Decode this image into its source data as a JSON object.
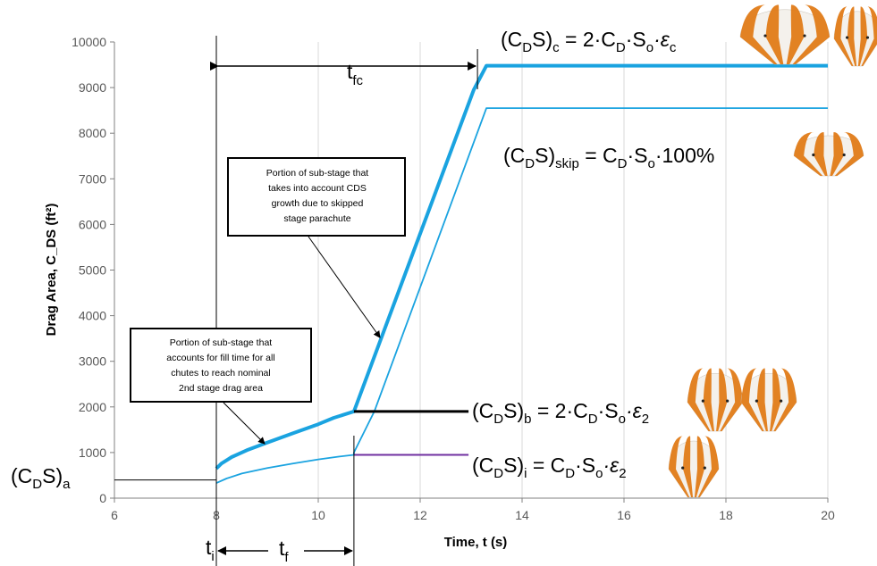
{
  "chart_data": {
    "type": "line",
    "xlabel": "Time, t (s)",
    "ylabel": "Drag Area, C_DS (ft²)",
    "xlim": [
      6,
      20
    ],
    "ylim": [
      0,
      10000
    ],
    "x_ticks": [
      "6",
      "8",
      "10",
      "12",
      "14",
      "16",
      "18",
      "20"
    ],
    "y_ticks": [
      "0",
      "1000",
      "2000",
      "3000",
      "4000",
      "5000",
      "6000",
      "7000",
      "8000",
      "9000",
      "10000"
    ],
    "grid": "vertical",
    "series": [
      {
        "color": "#1aa3e0",
        "width": 4,
        "points": [
          [
            8,
            650
          ],
          [
            8.1,
            760
          ],
          [
            8.3,
            900
          ],
          [
            8.6,
            1050
          ],
          [
            9,
            1220
          ],
          [
            9.5,
            1420
          ],
          [
            10,
            1620
          ],
          [
            10.3,
            1760
          ],
          [
            10.7,
            1900
          ],
          [
            13.05,
            8950
          ],
          [
            13.3,
            9480
          ],
          [
            20,
            9480
          ]
        ]
      },
      {
        "color": "#1aa3e0",
        "width": 1.8,
        "points": [
          [
            8,
            330
          ],
          [
            8.2,
            430
          ],
          [
            8.5,
            540
          ],
          [
            9,
            660
          ],
          [
            9.5,
            760
          ],
          [
            10,
            850
          ],
          [
            10.4,
            910
          ],
          [
            10.7,
            950
          ],
          [
            10.7,
            1000
          ],
          [
            11.1,
            1900
          ],
          [
            13.3,
            8550
          ],
          [
            20,
            8550
          ]
        ]
      },
      {
        "color": "#000000",
        "width": 3,
        "points": [
          [
            10.7,
            1900
          ],
          [
            12.95,
            1900
          ]
        ]
      },
      {
        "color": "#7030a0",
        "width": 2,
        "points": [
          [
            10.7,
            950
          ],
          [
            12.95,
            950
          ]
        ]
      },
      {
        "color": "#000000",
        "width": 1,
        "points": [
          [
            6,
            400
          ],
          [
            8,
            400
          ]
        ]
      }
    ],
    "markers": {
      "t_i": 8,
      "t_f_end": 10.7,
      "t_fc_end": 13.3
    },
    "annotations": {
      "t_fc": {
        "main": "t",
        "sub": "fc"
      },
      "t_i": {
        "main": "t",
        "sub": "i"
      },
      "t_f": {
        "main": "t",
        "sub": "f"
      },
      "cds_a": {
        "lead": "(C",
        "d": "D",
        "mid": "S)",
        "sub": "a"
      },
      "eq_c": {
        "lead": "(C",
        "d": "D",
        "mid": "S)",
        "sub": "c",
        "rest": " = 2·C",
        "d2": "D",
        "dot": "·S",
        "o": "o",
        "tail": "·ε",
        "e": "c"
      },
      "eq_skip": {
        "lead": "(C",
        "d": "D",
        "mid": "S)",
        "sub": "skip",
        "rest": " = C",
        "d2": "D",
        "dot": "·S",
        "o": "o",
        "tail": "·100%"
      },
      "eq_b": {
        "lead": "(C",
        "d": "D",
        "mid": "S)",
        "sub": "b",
        "rest": " = 2·C",
        "d2": "D",
        "dot": "·S",
        "o": "o",
        "tail": "·ε",
        "e": "2"
      },
      "eq_i": {
        "lead": "(C",
        "d": "D",
        "mid": "S)",
        "sub": "i",
        "rest": " = C",
        "d2": "D",
        "dot": "·S",
        "o": "o",
        "tail": "·ε",
        "e": "2"
      },
      "box_top": [
        "Portion of sub-stage that",
        "takes into account CDS",
        "growth due to skipped",
        "stage parachute"
      ],
      "box_bottom": [
        "Portion of sub-stage that",
        "accounts for fill time for all",
        "chutes to reach nominal",
        "2nd stage drag area"
      ]
    }
  }
}
